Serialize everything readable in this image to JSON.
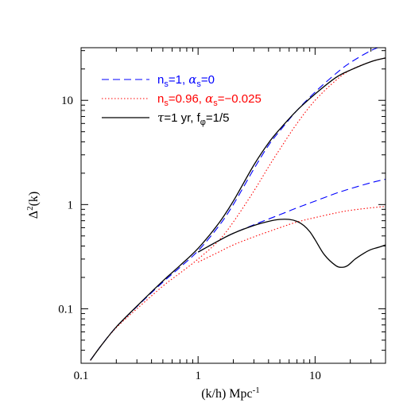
{
  "chart_data": {
    "type": "line",
    "xscale": "log",
    "yscale": "log",
    "xlim": [
      0.1,
      40
    ],
    "ylim": [
      0.03,
      32
    ],
    "xlabel": "(k/h) Mpc",
    "xlabel_sup": "-1",
    "ylabel": "Δ",
    "ylabel_sup": "2",
    "ylabel_tail": "(k)",
    "x_ticks": [
      {
        "v": 0.1,
        "label": "0.1"
      },
      {
        "v": 1,
        "label": "1"
      },
      {
        "v": 10,
        "label": "10"
      }
    ],
    "y_ticks": [
      {
        "v": 0.1,
        "label": "0.1"
      },
      {
        "v": 1,
        "label": "1"
      },
      {
        "v": 10,
        "label": "10"
      }
    ],
    "grid": false,
    "legend_position": "top-left",
    "legend": [
      {
        "series_index": 0,
        "color": "#0000ff",
        "dash": "dashed",
        "parts": [
          {
            "t": "n"
          },
          {
            "t": "s",
            "sub": true
          },
          {
            "t": "=1,  "
          },
          {
            "t": "α",
            "math": true
          },
          {
            "t": "s",
            "sub": true
          },
          {
            "t": "=0"
          }
        ]
      },
      {
        "series_index": 1,
        "color": "#ff0000",
        "dash": "dotted",
        "parts": [
          {
            "t": "n"
          },
          {
            "t": "s",
            "sub": true
          },
          {
            "t": "=0.96,  "
          },
          {
            "t": "α",
            "math": true
          },
          {
            "t": "s",
            "sub": true
          },
          {
            "t": "=−0.025"
          }
        ]
      },
      {
        "series_index": 2,
        "color": "#000000",
        "dash": "solid",
        "text_color": "#000000",
        "parts": [
          {
            "t": "τ",
            "math": true
          },
          {
            "t": "=1  yr,  f"
          },
          {
            "t": "φ",
            "sub": true
          },
          {
            "t": "=1/5"
          }
        ]
      }
    ],
    "series": [
      {
        "color": "#0000ff",
        "dash": "dashed",
        "curves": [
          {
            "x": [
              0.12,
              0.15,
              0.2,
              0.3,
              0.5,
              0.7,
              1.0,
              1.5,
              2.0,
              3.0,
              4.0,
              5.0,
              7.0,
              10.0,
              15.0,
              20.0,
              30.0,
              40.0
            ],
            "y": [
              0.032,
              0.045,
              0.067,
              0.105,
              0.18,
              0.25,
              0.36,
              0.62,
              1.0,
              2.2,
              3.7,
              5.1,
              8.0,
              12.0,
              18.0,
              23.0,
              30.0,
              34.0
            ]
          },
          {
            "x": [
              1.0,
              1.5,
              2.0,
              3.0,
              5.0,
              7.0,
              10.0,
              15.0,
              20.0,
              30.0,
              40.0
            ],
            "y": [
              0.35,
              0.45,
              0.53,
              0.64,
              0.8,
              0.93,
              1.08,
              1.28,
              1.42,
              1.62,
              1.75
            ]
          }
        ]
      },
      {
        "color": "#ff0000",
        "dash": "dotted",
        "curves": [
          {
            "x": [
              0.12,
              0.15,
              0.2,
              0.3,
              0.5,
              0.7,
              1.0,
              1.5,
              2.0,
              3.0,
              4.0,
              5.0,
              7.0,
              10.0,
              15.0,
              20.0,
              30.0,
              40.0
            ],
            "y": [
              0.032,
              0.045,
              0.066,
              0.1,
              0.165,
              0.22,
              0.3,
              0.45,
              0.68,
              1.35,
              2.3,
              3.4,
              6.0,
              10.0,
              15.5,
              19.5,
              23.5,
              25.5
            ]
          },
          {
            "x": [
              1.0,
              1.5,
              2.0,
              3.0,
              5.0,
              7.0,
              10.0,
              15.0,
              20.0,
              30.0,
              40.0
            ],
            "y": [
              0.28,
              0.35,
              0.41,
              0.49,
              0.6,
              0.68,
              0.75,
              0.83,
              0.88,
              0.93,
              0.96
            ]
          }
        ]
      },
      {
        "color": "#000000",
        "dash": "solid",
        "curves": [
          {
            "x": [
              0.12,
              0.15,
              0.2,
              0.3,
              0.5,
              0.7,
              1.0,
              1.5,
              2.0,
              3.0,
              4.0,
              5.0,
              7.0,
              10.0,
              15.0,
              20.0,
              30.0,
              40.0
            ],
            "y": [
              0.032,
              0.045,
              0.067,
              0.106,
              0.185,
              0.26,
              0.38,
              0.66,
              1.08,
              2.4,
              3.9,
              5.3,
              8.0,
              11.5,
              16.5,
              19.5,
              23.5,
              25.5
            ]
          },
          {
            "x": [
              1.0,
              1.5,
              2.0,
              3.0,
              4.0,
              5.0,
              6.0,
              7.0,
              8.0,
              9.0,
              10.0,
              12.0,
              15.0,
              17.0,
              19.0,
              22.0,
              26.0,
              30.0,
              35.0,
              40.0
            ],
            "y": [
              0.35,
              0.45,
              0.53,
              0.63,
              0.69,
              0.72,
              0.72,
              0.69,
              0.63,
              0.55,
              0.46,
              0.33,
              0.26,
              0.25,
              0.26,
              0.3,
              0.34,
              0.37,
              0.39,
              0.41
            ]
          }
        ]
      }
    ]
  }
}
